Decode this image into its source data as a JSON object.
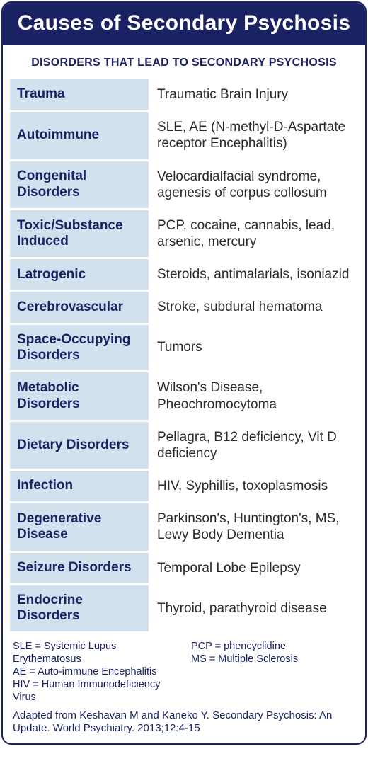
{
  "colors": {
    "header_bg": "#1a2263",
    "header_text": "#ffffff",
    "category_bg": "#d3e1ef",
    "category_text": "#1a2263",
    "desc_text": "#2a2a2a",
    "footnote_text": "#1a2263",
    "card_border": "#1a2263"
  },
  "title": "Causes of Secondary Psychosis",
  "subheader": "DISORDERS THAT LEAD TO SECONDARY PSYCHOSIS",
  "rows": [
    {
      "category": "Trauma",
      "description": "Traumatic Brain Injury"
    },
    {
      "category": "Autoimmune",
      "description": "SLE, AE (N-methyl-D-Aspartate receptor Encephalitis)"
    },
    {
      "category": "Congenital Disorders",
      "description": "Velocardialfacial syndrome, agenesis of corpus collosum"
    },
    {
      "category": "Toxic/Substance Induced",
      "description": "PCP, cocaine, cannabis, lead, arsenic, mercury"
    },
    {
      "category": "Latrogenic",
      "description": "Steroids, antimalarials, isoniazid"
    },
    {
      "category": "Cerebrovascular",
      "description": "Stroke, subdural hematoma"
    },
    {
      "category": "Space-Occupying Disorders",
      "description": "Tumors"
    },
    {
      "category": "Metabolic Disorders",
      "description": "Wilson's Disease, Pheochromocytoma"
    },
    {
      "category": "Dietary Disorders",
      "description": "Pellagra, B12 deficiency, Vit D deficiency"
    },
    {
      "category": "Infection",
      "description": "HIV, Syphillis, toxoplasmosis"
    },
    {
      "category": "Degenerative Disease",
      "description": "Parkinson's, Huntington's, MS, Lewy Body Dementia"
    },
    {
      "category": "Seizure Disorders",
      "description": "Temporal Lobe Epilepsy"
    },
    {
      "category": "Endocrine Disorders",
      "description": "Thyroid, parathyroid disease"
    }
  ],
  "footnotes_left": [
    "SLE = Systemic Lupus Erythematosus",
    "AE = Auto-immune Encephalitis",
    "HIV = Human Immunodeficiency Virus"
  ],
  "footnotes_right": [
    "PCP = phencyclidine",
    "MS = Multiple Sclerosis"
  ],
  "citation": "Adapted from Keshavan M and Kaneko Y. Secondary Psychosis: An Update. World Psychiatry. 2013;12:4-15"
}
